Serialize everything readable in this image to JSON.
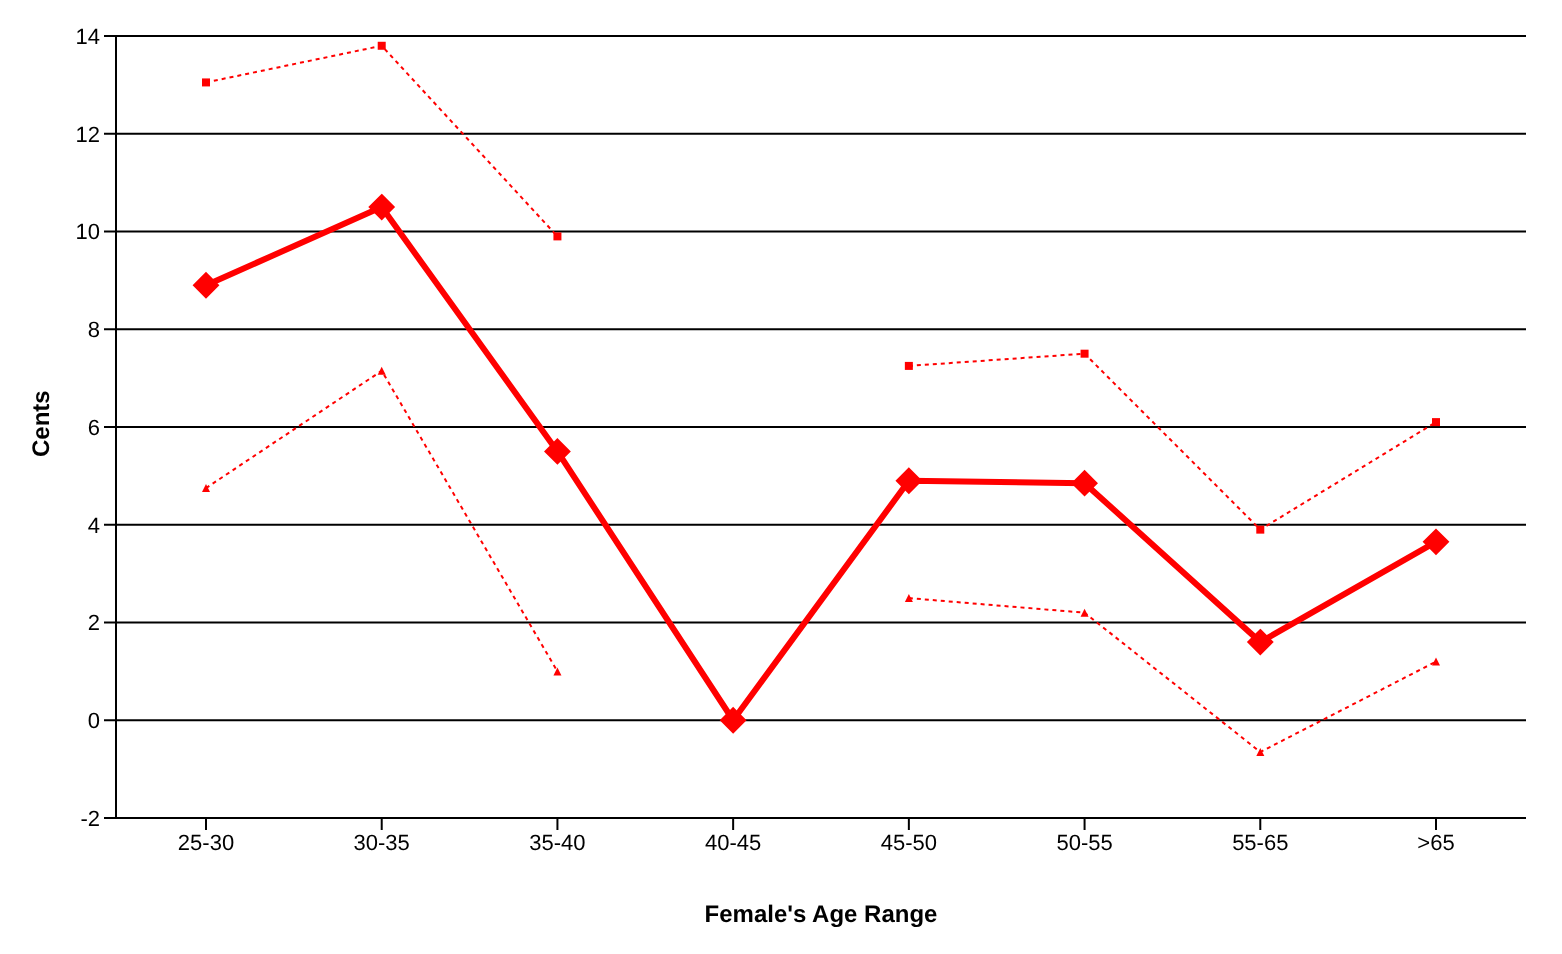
{
  "chart_data": {
    "type": "line",
    "xlabel": "Female's Age Range",
    "ylabel": "Cents",
    "categories": [
      "25-30",
      "30-35",
      "35-40",
      "40-45",
      "45-50",
      "50-55",
      "55-65",
      ">65"
    ],
    "series": [
      {
        "color": "#ff0000",
        "values": [
          8.9,
          10.5,
          5.5,
          0,
          4.9,
          4.85,
          1.6,
          3.65
        ],
        "marker": "diamond",
        "line_style": "solid"
      },
      {
        "color": "#ff0000",
        "values": [
          13.05,
          13.8,
          9.9,
          null,
          7.25,
          7.5,
          3.9,
          6.1
        ],
        "marker": "square",
        "line_style": "dotted"
      },
      {
        "color": "#ff0000",
        "values": [
          4.75,
          7.15,
          1.0,
          null,
          2.5,
          2.2,
          -0.65,
          1.2
        ],
        "marker": "triangle",
        "line_style": "dotted"
      }
    ],
    "ylim": [
      -2,
      14
    ],
    "yticks": [
      -2,
      0,
      2,
      4,
      6,
      8,
      10,
      12,
      14
    ],
    "grid": "y",
    "legend": false
  }
}
